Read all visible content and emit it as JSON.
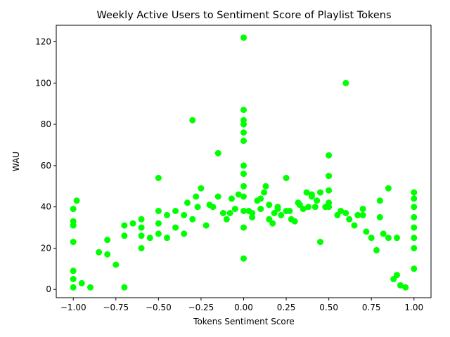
{
  "chart_data": {
    "type": "scatter",
    "title": "Weekly Active Users to Sentiment Score of Playlist Tokens",
    "xlabel": "Tokens Sentiment Score",
    "ylabel": "WAU",
    "xlim": [
      -1.1,
      1.1
    ],
    "ylim": [
      -4,
      128
    ],
    "xticks": [
      -1.0,
      -0.75,
      -0.5,
      -0.25,
      0.0,
      0.25,
      0.5,
      0.75,
      1.0
    ],
    "xtick_labels": [
      "−1.00",
      "−0.75",
      "−0.50",
      "−0.25",
      "0.00",
      "0.25",
      "0.50",
      "0.75",
      "1.00"
    ],
    "yticks": [
      0,
      20,
      40,
      60,
      80,
      100,
      120
    ],
    "ytick_labels": [
      "0",
      "20",
      "40",
      "60",
      "80",
      "100",
      "120"
    ],
    "grid": false,
    "marker_color": "#00ff00",
    "x": [
      0.0,
      0.6,
      -0.3,
      0.0,
      0.0,
      0.0,
      0.0,
      0.0,
      -0.15,
      0.5,
      0.5,
      0.25,
      -0.5,
      0.85,
      0.13,
      -0.25,
      -0.28,
      0.0,
      -0.98,
      -1.0,
      -1.0,
      -1.0,
      -1.0,
      -1.0,
      -1.0,
      -1.0,
      -0.8,
      -0.8,
      -0.85,
      -0.9,
      -0.7,
      -0.7,
      -0.7,
      -0.65,
      -0.6,
      -0.6,
      -0.6,
      -0.55,
      -0.5,
      -0.5,
      -0.5,
      -0.45,
      -0.4,
      -0.4,
      -0.35,
      -0.33,
      -0.3,
      -0.27,
      -0.2,
      -0.18,
      -0.15,
      -0.12,
      -0.1,
      -0.08,
      -0.05,
      -0.03,
      0.0,
      0.0,
      0.0,
      0.0,
      0.0,
      0.03,
      0.05,
      0.08,
      0.1,
      0.12,
      0.15,
      0.18,
      0.2,
      0.22,
      0.25,
      0.28,
      0.3,
      0.33,
      0.35,
      0.38,
      0.4,
      0.42,
      0.45,
      0.48,
      0.5,
      0.5,
      0.5,
      0.55,
      0.57,
      0.6,
      0.62,
      0.65,
      0.7,
      0.7,
      0.75,
      0.78,
      0.8,
      0.8,
      0.82,
      0.85,
      0.88,
      0.9,
      0.92,
      0.95,
      1.0,
      1.0,
      1.0,
      1.0,
      1.0,
      1.0,
      1.0,
      1.0,
      0.43,
      0.4,
      0.1,
      0.17,
      0.05,
      -0.22,
      0.32,
      -0.07,
      0.27,
      0.37,
      0.0,
      -0.6,
      -0.35,
      0.15,
      0.2,
      0.45,
      -0.45,
      -0.75,
      0.67,
      0.72,
      0.9,
      -0.95
    ],
    "y": [
      122,
      100,
      82,
      87,
      82,
      80,
      76,
      72,
      66,
      65,
      55,
      54,
      54,
      49,
      50,
      49,
      45,
      60,
      43,
      39,
      33,
      31,
      23,
      9,
      5,
      1,
      24,
      17,
      18,
      1,
      31,
      26,
      1,
      32,
      34,
      30,
      26,
      25,
      38,
      32,
      27,
      36,
      38,
      30,
      36,
      42,
      34,
      40,
      41,
      40,
      45,
      37,
      34,
      37,
      39,
      46,
      56,
      50,
      45,
      38,
      30,
      38,
      37,
      43,
      39,
      47,
      41,
      37,
      40,
      36,
      38,
      34,
      33,
      41,
      39,
      40,
      45,
      40,
      47,
      40,
      48,
      42,
      40,
      36,
      38,
      37,
      34,
      31,
      39,
      36,
      25,
      19,
      43,
      35,
      27,
      25,
      5,
      7,
      2,
      1,
      47,
      44,
      40,
      35,
      30,
      25,
      20,
      10,
      43,
      46,
      44,
      32,
      35,
      31,
      42,
      44,
      38,
      47,
      15,
      20,
      27,
      34,
      39,
      23,
      25,
      12,
      36,
      28,
      25,
      3
    ]
  }
}
